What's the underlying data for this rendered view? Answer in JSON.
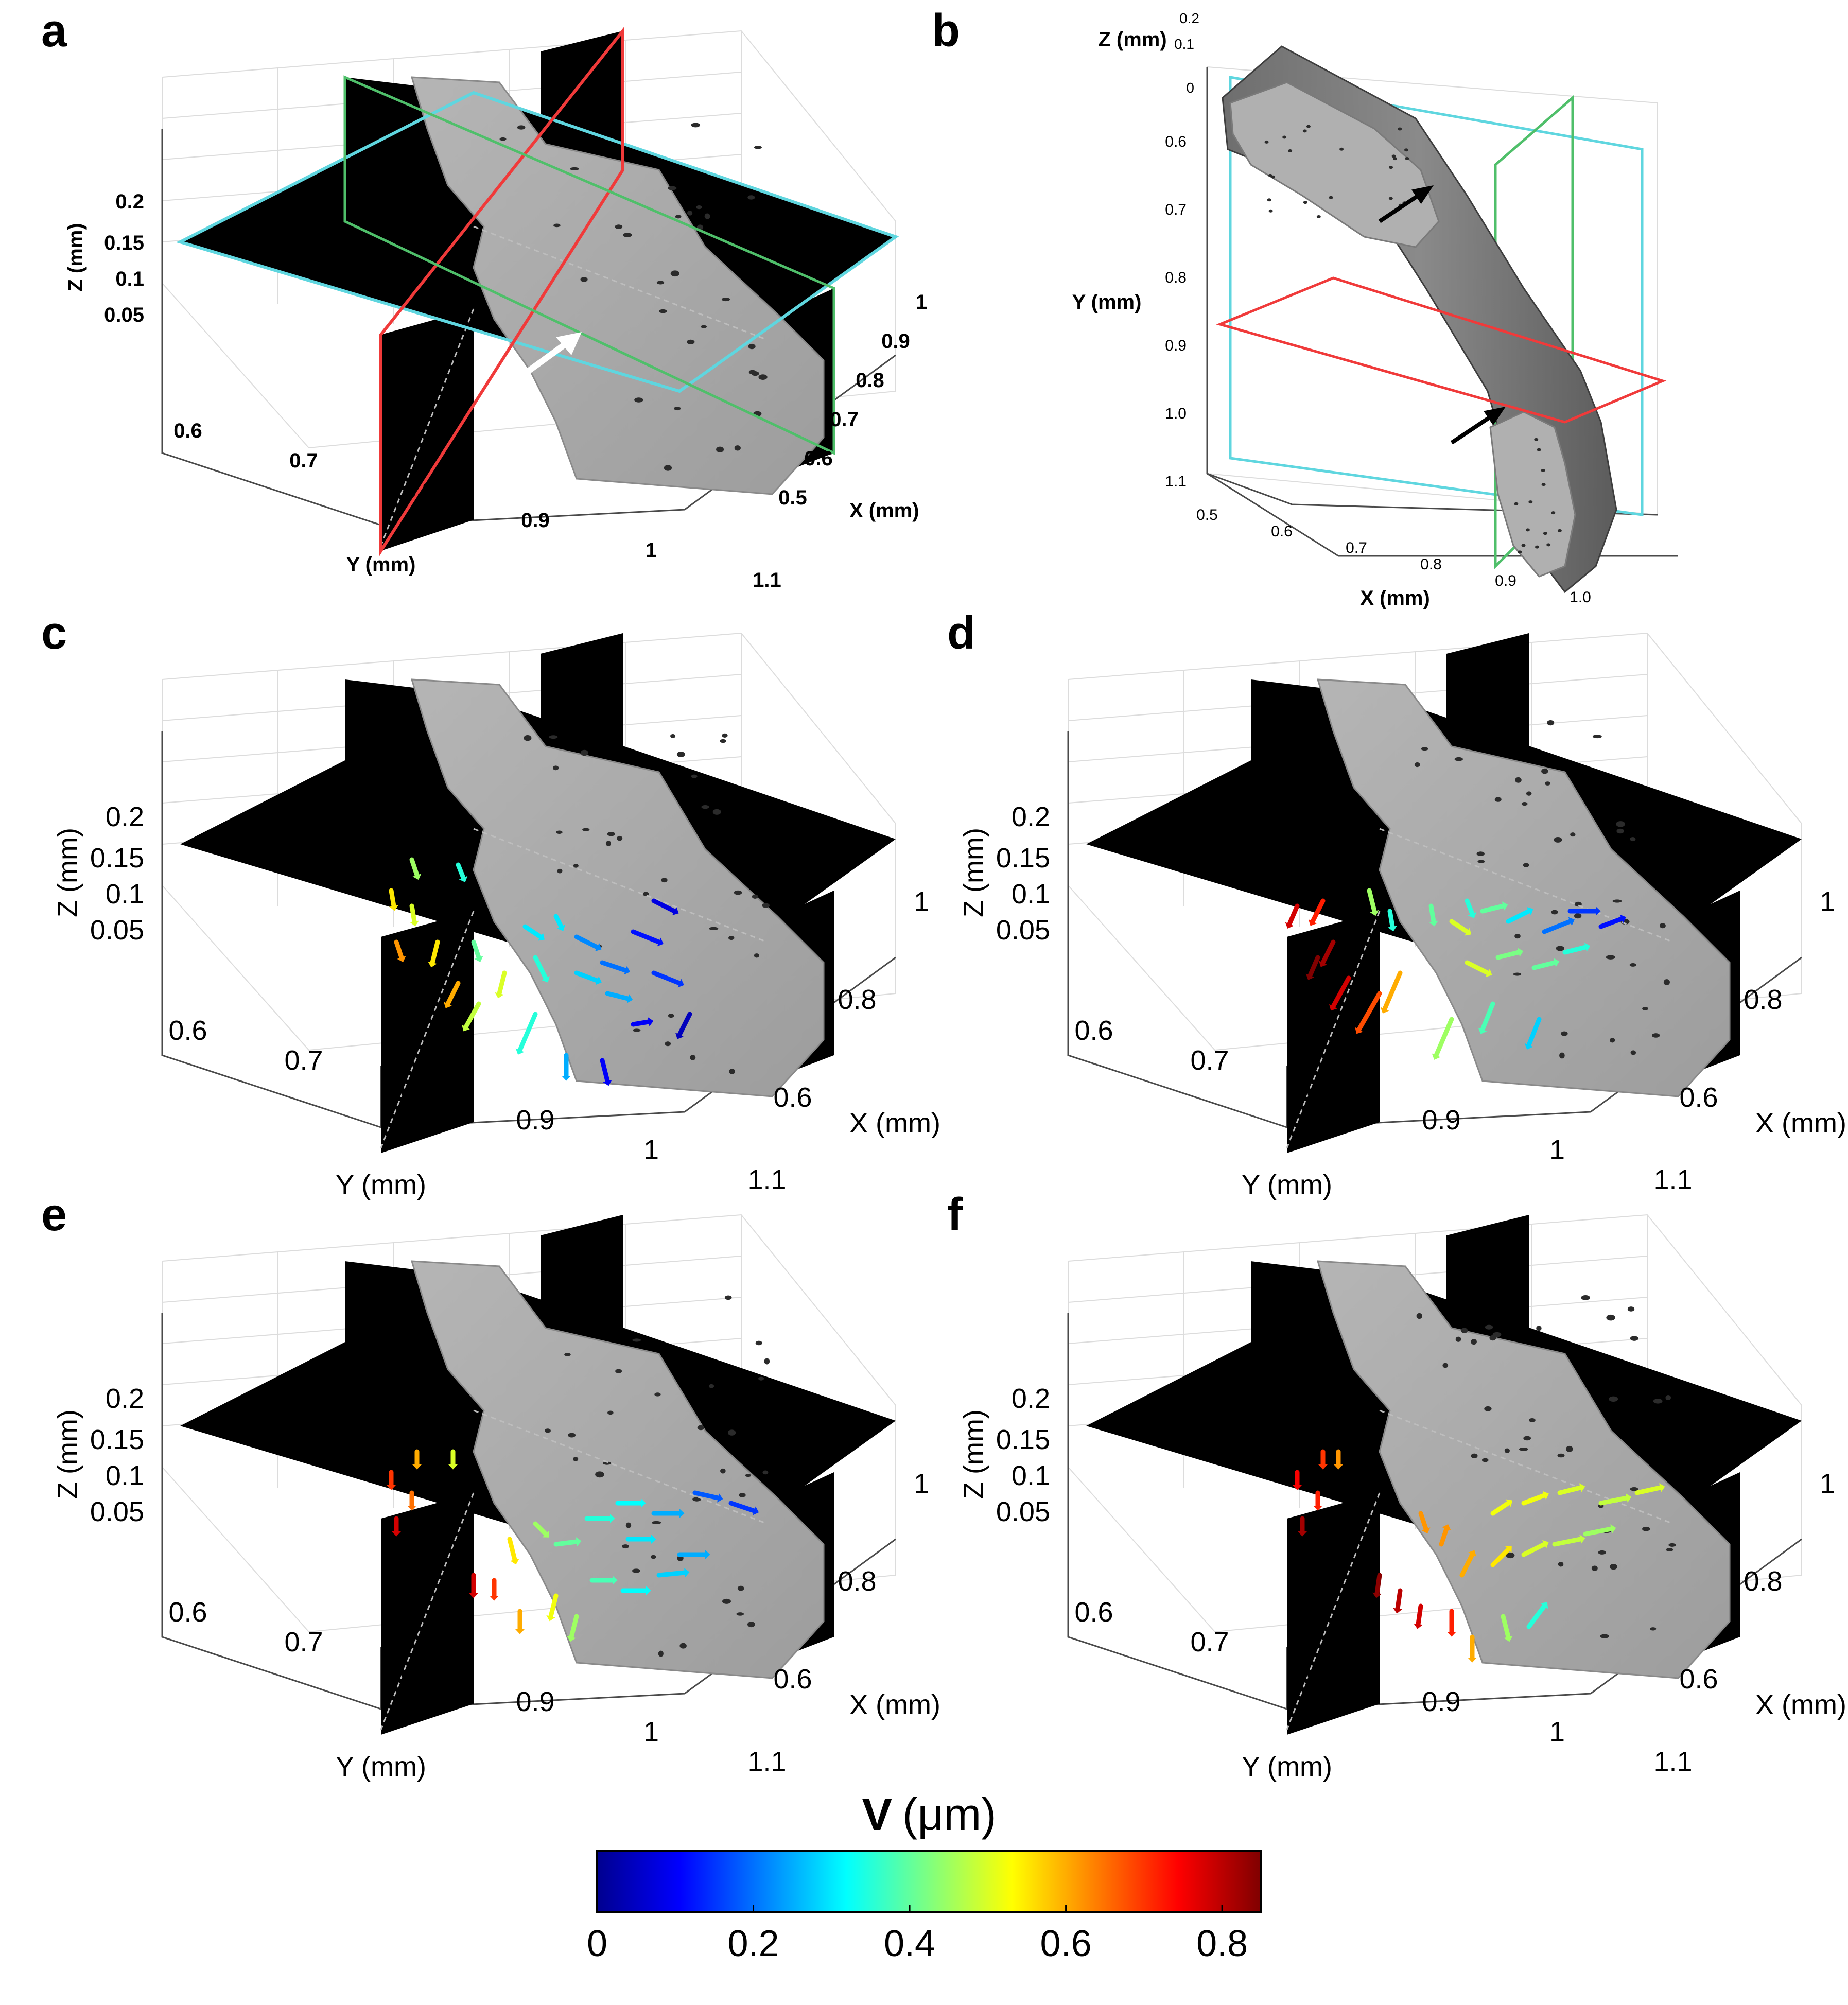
{
  "panels": {
    "a": {
      "label": "a",
      "z_axis": {
        "title": "Z (mm)",
        "ticks": [
          "0.2",
          "0.15",
          "0.1",
          "0.05"
        ]
      },
      "y_axis": {
        "title": "Y (mm)",
        "ticks": [
          "0.6",
          "0.7",
          "0.8",
          "0.9",
          "1",
          "1.1"
        ]
      },
      "x_axis": {
        "title": "X (mm)",
        "ticks": [
          "1",
          "0.9",
          "0.8",
          "0.7",
          "0.6",
          "0.5"
        ]
      },
      "arrow_color": "#ffffff",
      "plane_colors": {
        "xy": "#5fd6df",
        "yz": "#f03a3a",
        "xz": "#4fbf6a"
      }
    },
    "b": {
      "label": "b",
      "z_axis": {
        "title": "Z (mm)",
        "ticks": [
          "0.2",
          "0.1",
          "0"
        ]
      },
      "y_axis": {
        "title": "Y (mm)",
        "ticks": [
          "0.6",
          "0.7",
          "0.8",
          "0.9",
          "1.0",
          "1.1"
        ]
      },
      "x_axis": {
        "title": "X (mm)",
        "ticks": [
          "0.5",
          "0.6",
          "0.7",
          "0.8",
          "0.9",
          "1.0"
        ]
      },
      "arrow_color": "#000000"
    },
    "c": {
      "label": "c",
      "z_axis": {
        "title": "Z (mm)",
        "ticks": [
          "0.2",
          "0.15",
          "0.1",
          "0.05"
        ]
      },
      "y_axis": {
        "title": "Y (mm)",
        "ticks": [
          "0.6",
          "0.7",
          "0.8",
          "0.9",
          "1",
          "1.1"
        ]
      },
      "x_axis": {
        "title": "X (mm)",
        "ticks": [
          "1",
          "0.8",
          "0.6"
        ]
      }
    },
    "d": {
      "label": "d",
      "z_axis": {
        "title": "Z (mm)",
        "ticks": [
          "0.2",
          "0.15",
          "0.1",
          "0.05"
        ]
      },
      "y_axis": {
        "title": "Y (mm)",
        "ticks": [
          "0.6",
          "0.7",
          "0.8",
          "0.9",
          "1",
          "1.1"
        ]
      },
      "x_axis": {
        "title": "X (mm)",
        "ticks": [
          "1",
          "0.8",
          "0.6"
        ]
      }
    },
    "e": {
      "label": "e",
      "z_axis": {
        "title": "Z (mm)",
        "ticks": [
          "0.2",
          "0.15",
          "0.1",
          "0.05"
        ]
      },
      "y_axis": {
        "title": "Y (mm)",
        "ticks": [
          "0.6",
          "0.7",
          "0.8",
          "0.9",
          "1",
          "1.1"
        ]
      },
      "x_axis": {
        "title": "X (mm)",
        "ticks": [
          "1",
          "0.8",
          "0.6"
        ]
      }
    },
    "f": {
      "label": "f",
      "z_axis": {
        "title": "Z (mm)",
        "ticks": [
          "0.2",
          "0.15",
          "0.1",
          "0.05"
        ]
      },
      "y_axis": {
        "title": "Y (mm)",
        "ticks": [
          "0.6",
          "0.7",
          "0.8",
          "0.9",
          "1",
          "1.1"
        ]
      },
      "x_axis": {
        "title": "X (mm)",
        "ticks": [
          "1",
          "0.8",
          "0.6"
        ]
      }
    }
  },
  "colorbar": {
    "title_symbol": "V",
    "title_unit": "(μm)",
    "ticks": [
      "0",
      "0.2",
      "0.4",
      "0.6",
      "0.8"
    ],
    "range": [
      0,
      0.85
    ],
    "colormap": "jet",
    "colors": [
      "#00008f",
      "#0000ff",
      "#00ffff",
      "#7fff7f",
      "#ffff00",
      "#ff0000",
      "#7f0000"
    ]
  },
  "colors": {
    "bone": "#a9a9a9",
    "background_slice": "#000000",
    "axis": "#4a4a4a",
    "gridline": "#dcdcdc"
  }
}
